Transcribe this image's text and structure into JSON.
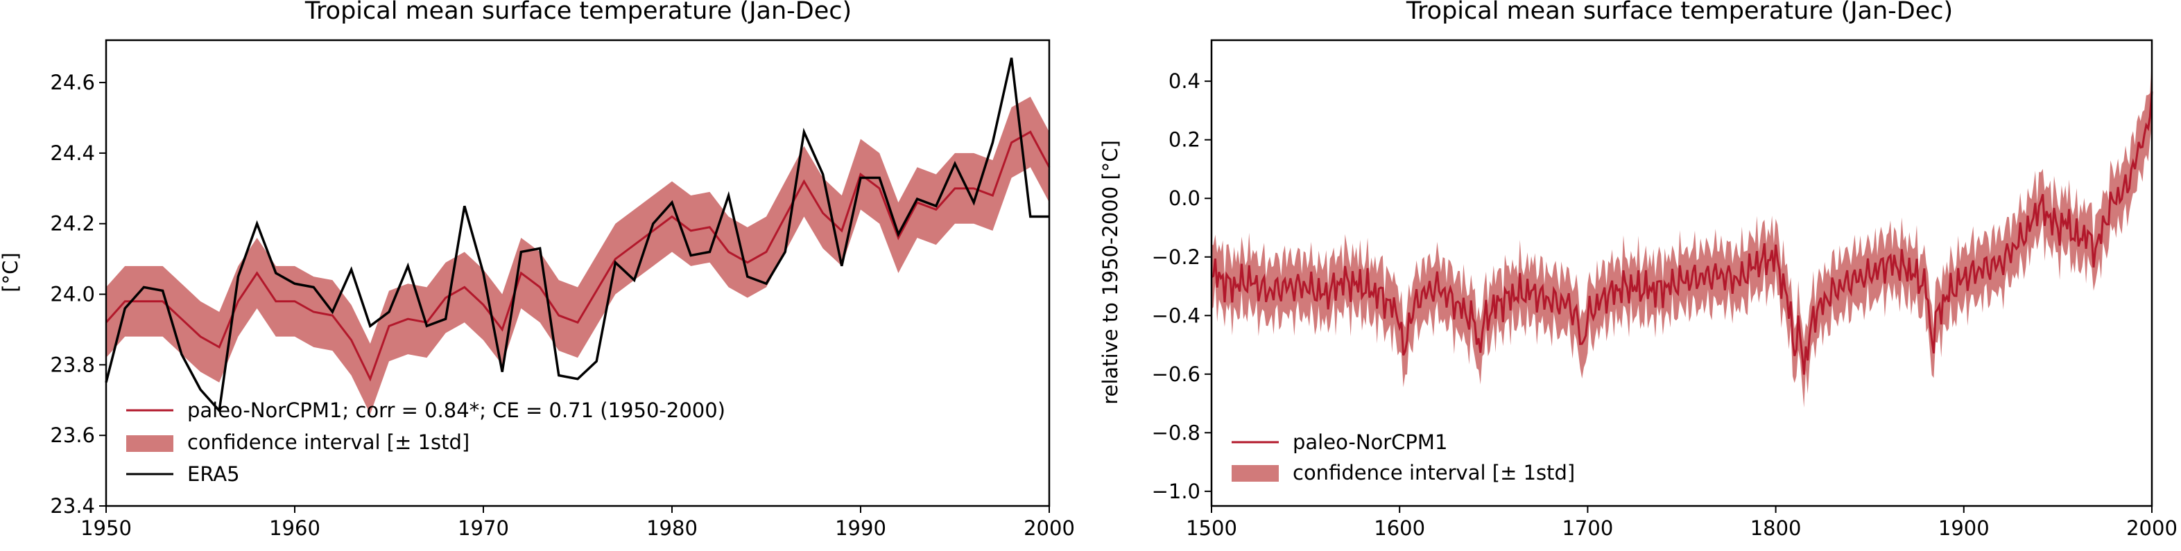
{
  "chart_data": [
    {
      "type": "line",
      "title": "Tropical mean surface temperature (Jan-Dec)",
      "xlabel": "",
      "ylabel": "[°C]",
      "xlim": [
        1950,
        2000
      ],
      "ylim": [
        23.4,
        24.72
      ],
      "xticks": [
        1950,
        1960,
        1970,
        1980,
        1990,
        2000
      ],
      "yticks": [
        "23.4",
        "23.6",
        "23.8",
        "24.0",
        "24.2",
        "24.4",
        "24.6"
      ],
      "legend": {
        "position": "lower-left",
        "entries": [
          "paleo-NorCPM1; corr = 0.84*; CE = 0.71 (1950-2000)",
          "confidence interval [± 1std]",
          "ERA5"
        ]
      },
      "x": [
        1950,
        1951,
        1952,
        1953,
        1954,
        1955,
        1956,
        1957,
        1958,
        1959,
        1960,
        1961,
        1962,
        1963,
        1964,
        1965,
        1966,
        1967,
        1968,
        1969,
        1970,
        1971,
        1972,
        1973,
        1974,
        1975,
        1976,
        1977,
        1978,
        1979,
        1980,
        1981,
        1982,
        1983,
        1984,
        1985,
        1986,
        1987,
        1988,
        1989,
        1990,
        1991,
        1992,
        1993,
        1994,
        1995,
        1996,
        1997,
        1998,
        1999,
        2000
      ],
      "series": [
        {
          "name": "paleo-NorCPM1; corr = 0.84*; CE = 0.71 (1950-2000)",
          "color": "#b2182b",
          "values": [
            23.92,
            23.98,
            23.98,
            23.98,
            23.93,
            23.88,
            23.85,
            23.98,
            24.06,
            23.98,
            23.98,
            23.95,
            23.94,
            23.87,
            23.76,
            23.91,
            23.93,
            23.92,
            23.99,
            24.02,
            23.97,
            23.9,
            24.06,
            24.02,
            23.94,
            23.92,
            24.01,
            24.1,
            24.14,
            24.18,
            24.22,
            24.18,
            24.19,
            24.12,
            24.09,
            24.12,
            24.22,
            24.32,
            24.23,
            24.18,
            24.34,
            24.3,
            24.16,
            24.26,
            24.24,
            24.3,
            24.3,
            24.28,
            24.43,
            24.46,
            24.36
          ],
          "band_halfwidth": 0.1
        },
        {
          "name": "ERA5",
          "color": "#000000",
          "values": [
            23.75,
            23.96,
            24.02,
            24.01,
            23.83,
            23.73,
            23.67,
            24.05,
            24.2,
            24.06,
            24.03,
            24.02,
            23.95,
            24.07,
            23.91,
            23.95,
            24.08,
            23.91,
            23.93,
            24.25,
            24.06,
            23.78,
            24.12,
            24.13,
            23.77,
            23.76,
            23.81,
            24.09,
            24.04,
            24.2,
            24.26,
            24.11,
            24.12,
            24.28,
            24.05,
            24.03,
            24.12,
            24.46,
            24.34,
            24.08,
            24.33,
            24.33,
            24.17,
            24.27,
            24.25,
            24.37,
            24.26,
            24.43,
            24.67,
            24.22,
            24.22
          ]
        }
      ]
    },
    {
      "type": "line",
      "title": "Tropical mean surface temperature (Jan-Dec)",
      "xlabel": "",
      "ylabel": "relative to 1950-2000 [°C]",
      "xlim": [
        1500,
        2000
      ],
      "ylim": [
        -1.05,
        0.54
      ],
      "xticks": [
        1500,
        1600,
        1700,
        1800,
        1900,
        2000
      ],
      "yticks": [
        "−1.0",
        "−0.8",
        "−0.6",
        "−0.4",
        "−0.2",
        "0.0",
        "0.2",
        "0.4"
      ],
      "legend": {
        "position": "lower-left",
        "entries": [
          "paleo-NorCPM1",
          "confidence interval [± 1std]"
        ]
      },
      "anchors": [
        [
          1500,
          -0.25
        ],
        [
          1510,
          -0.3
        ],
        [
          1520,
          -0.28
        ],
        [
          1530,
          -0.32
        ],
        [
          1540,
          -0.3
        ],
        [
          1550,
          -0.3
        ],
        [
          1560,
          -0.33
        ],
        [
          1570,
          -0.28
        ],
        [
          1580,
          -0.3
        ],
        [
          1590,
          -0.33
        ],
        [
          1600,
          -0.4
        ],
        [
          1602,
          -0.55
        ],
        [
          1605,
          -0.42
        ],
        [
          1610,
          -0.34
        ],
        [
          1620,
          -0.3
        ],
        [
          1630,
          -0.36
        ],
        [
          1640,
          -0.42
        ],
        [
          1642,
          -0.52
        ],
        [
          1645,
          -0.42
        ],
        [
          1650,
          -0.37
        ],
        [
          1660,
          -0.33
        ],
        [
          1670,
          -0.32
        ],
        [
          1680,
          -0.35
        ],
        [
          1690,
          -0.36
        ],
        [
          1695,
          -0.42
        ],
        [
          1697,
          -0.52
        ],
        [
          1700,
          -0.4
        ],
        [
          1710,
          -0.33
        ],
        [
          1720,
          -0.3
        ],
        [
          1730,
          -0.31
        ],
        [
          1740,
          -0.31
        ],
        [
          1750,
          -0.28
        ],
        [
          1760,
          -0.27
        ],
        [
          1770,
          -0.26
        ],
        [
          1780,
          -0.28
        ],
        [
          1790,
          -0.22
        ],
        [
          1800,
          -0.2
        ],
        [
          1805,
          -0.32
        ],
        [
          1808,
          -0.4
        ],
        [
          1810,
          -0.52
        ],
        [
          1813,
          -0.45
        ],
        [
          1815,
          -0.58
        ],
        [
          1818,
          -0.48
        ],
        [
          1820,
          -0.4
        ],
        [
          1830,
          -0.32
        ],
        [
          1840,
          -0.28
        ],
        [
          1850,
          -0.26
        ],
        [
          1860,
          -0.22
        ],
        [
          1870,
          -0.24
        ],
        [
          1880,
          -0.3
        ],
        [
          1883,
          -0.5
        ],
        [
          1885,
          -0.42
        ],
        [
          1890,
          -0.34
        ],
        [
          1900,
          -0.27
        ],
        [
          1910,
          -0.24
        ],
        [
          1920,
          -0.22
        ],
        [
          1930,
          -0.14
        ],
        [
          1935,
          -0.1
        ],
        [
          1940,
          -0.02
        ],
        [
          1945,
          -0.06
        ],
        [
          1950,
          -0.1
        ],
        [
          1955,
          -0.08
        ],
        [
          1960,
          -0.14
        ],
        [
          1965,
          -0.12
        ],
        [
          1970,
          -0.18
        ],
        [
          1975,
          -0.08
        ],
        [
          1980,
          0.0
        ],
        [
          1985,
          0.02
        ],
        [
          1990,
          0.1
        ],
        [
          1993,
          0.16
        ],
        [
          1995,
          0.22
        ],
        [
          1997,
          0.2
        ],
        [
          1999,
          0.3
        ],
        [
          2000,
          0.36
        ]
      ],
      "series": [
        {
          "name": "paleo-NorCPM1",
          "color": "#b2182b",
          "band_halfwidth": 0.1
        }
      ]
    }
  ]
}
